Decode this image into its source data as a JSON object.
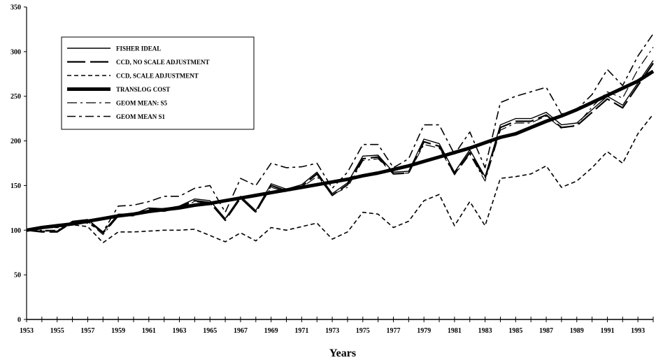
{
  "chart_data": {
    "type": "line",
    "title": "",
    "xlabel": "Years",
    "ylabel": "",
    "xlim": [
      1953,
      1994
    ],
    "ylim": [
      0,
      350
    ],
    "grid": false,
    "legend_position": "top-left",
    "yticks": [
      0,
      50,
      100,
      150,
      200,
      250,
      300,
      350
    ],
    "xticks": [
      1953,
      1955,
      1957,
      1959,
      1961,
      1963,
      1965,
      1967,
      1969,
      1971,
      1973,
      1975,
      1977,
      1979,
      1981,
      1983,
      1985,
      1987,
      1989,
      1991,
      1993
    ],
    "x": [
      1953,
      1954,
      1955,
      1956,
      1957,
      1958,
      1959,
      1960,
      1961,
      1962,
      1963,
      1964,
      1965,
      1966,
      1967,
      1968,
      1969,
      1970,
      1971,
      1972,
      1973,
      1974,
      1975,
      1976,
      1977,
      1978,
      1979,
      1980,
      1981,
      1982,
      1983,
      1984,
      1985,
      1986,
      1987,
      1988,
      1989,
      1990,
      1991,
      1992,
      1993,
      1994
    ],
    "series": [
      {
        "name": "FISHER IDEAL",
        "style": "thin-solid",
        "values": [
          100,
          99,
          99,
          110,
          112,
          98,
          118,
          118,
          125,
          124,
          127,
          135,
          133,
          113,
          138,
          122,
          152,
          146,
          151,
          165,
          141,
          153,
          183,
          184,
          165,
          166,
          202,
          197,
          165,
          190,
          160,
          218,
          225,
          225,
          232,
          218,
          220,
          235,
          250,
          240,
          265,
          290
        ]
      },
      {
        "name": "CCD, NO SCALE ADJUSTMENT",
        "style": "long-dash",
        "values": [
          100,
          98,
          98,
          109,
          111,
          97,
          116,
          117,
          124,
          123,
          126,
          133,
          131,
          111,
          136,
          120,
          150,
          144,
          149,
          163,
          139,
          151,
          180,
          182,
          163,
          164,
          199,
          194,
          163,
          187,
          158,
          215,
          222,
          222,
          229,
          215,
          217,
          232,
          247,
          237,
          262,
          287
        ]
      },
      {
        "name": "CCD, SCALE ADJUSTMENT",
        "style": "short-dash",
        "values": [
          100,
          103,
          103,
          106,
          104,
          86,
          98,
          98,
          99,
          100,
          100,
          101,
          94,
          87,
          97,
          88,
          103,
          100,
          104,
          108,
          90,
          98,
          120,
          118,
          103,
          110,
          133,
          140,
          105,
          132,
          105,
          158,
          160,
          163,
          172,
          148,
          155,
          170,
          188,
          175,
          208,
          230
        ]
      },
      {
        "name": "TRANSLOG COST",
        "style": "thick-solid",
        "values": [
          100,
          103,
          105,
          107,
          110,
          113,
          116,
          118,
          121,
          123,
          125,
          128,
          130,
          133,
          136,
          139,
          142,
          145,
          148,
          151,
          154,
          157,
          161,
          164,
          168,
          172,
          177,
          182,
          187,
          192,
          198,
          204,
          208,
          215,
          222,
          228,
          235,
          243,
          251,
          259,
          267,
          278
        ]
      },
      {
        "name": "GEOM MEAN: S5",
        "style": "dash-dot",
        "values": [
          100,
          100,
          100,
          108,
          110,
          95,
          116,
          116,
          122,
          121,
          125,
          132,
          130,
          112,
          137,
          120,
          148,
          143,
          148,
          160,
          140,
          148,
          178,
          180,
          163,
          164,
          196,
          192,
          162,
          185,
          155,
          212,
          220,
          220,
          228,
          214,
          218,
          238,
          255,
          248,
          280,
          305
        ]
      },
      {
        "name": "GEOM MEAN S1",
        "style": "dash-dash",
        "values": [
          100,
          103,
          103,
          109,
          108,
          98,
          127,
          128,
          132,
          138,
          138,
          147,
          150,
          120,
          158,
          150,
          175,
          170,
          171,
          175,
          147,
          165,
          196,
          196,
          170,
          180,
          218,
          218,
          185,
          210,
          170,
          243,
          250,
          255,
          260,
          230,
          235,
          252,
          280,
          262,
          295,
          320
        ]
      }
    ]
  }
}
